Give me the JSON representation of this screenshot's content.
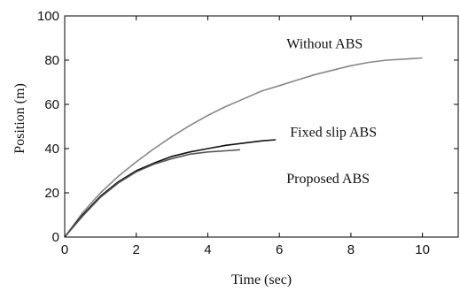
{
  "chart_data": {
    "type": "line",
    "title": "",
    "xlabel": "Time (sec)",
    "ylabel": "Position (m)",
    "xlim": [
      0,
      11
    ],
    "ylim": [
      0,
      100
    ],
    "xticks": [
      0,
      2,
      4,
      6,
      8,
      10
    ],
    "yticks": [
      0,
      20,
      40,
      60,
      80,
      100
    ],
    "grid": false,
    "series": [
      {
        "color": "#888888",
        "x": [
          0,
          0.5,
          1,
          1.5,
          2,
          2.5,
          3,
          3.5,
          4,
          4.5,
          5,
          5.5,
          6,
          6.5,
          7,
          7.5,
          8,
          8.5,
          9,
          9.5,
          10
        ],
        "y": [
          0,
          11,
          20,
          27.5,
          34,
          40,
          45.5,
          50.5,
          55,
          59,
          62.5,
          66,
          68.5,
          71,
          73.5,
          75.5,
          77.5,
          79,
          80,
          80.5,
          81
        ]
      },
      {
        "color": "#111111",
        "x": [
          0,
          0.5,
          1,
          1.5,
          2,
          2.5,
          3,
          3.5,
          4,
          4.5,
          5,
          5.5,
          5.9
        ],
        "y": [
          0,
          10,
          18.5,
          25,
          30,
          33.5,
          36.5,
          38.5,
          40,
          41.5,
          42.5,
          43.5,
          44
        ]
      },
      {
        "color": "#555555",
        "x": [
          0,
          0.5,
          1,
          1.5,
          2,
          2.5,
          3,
          3.5,
          4,
          4.5,
          4.9
        ],
        "y": [
          0,
          9.5,
          18,
          24.5,
          29.5,
          33,
          35.5,
          37.5,
          38.5,
          39,
          39.5
        ]
      }
    ],
    "annotations": [
      {
        "text": "Without ABS",
        "x": 6.2,
        "y": 85.5
      },
      {
        "text": "Fixed slip ABS",
        "x": 6.3,
        "y": 45.5
      },
      {
        "text": "Proposed ABS",
        "x": 6.2,
        "y": 24.5
      }
    ]
  }
}
